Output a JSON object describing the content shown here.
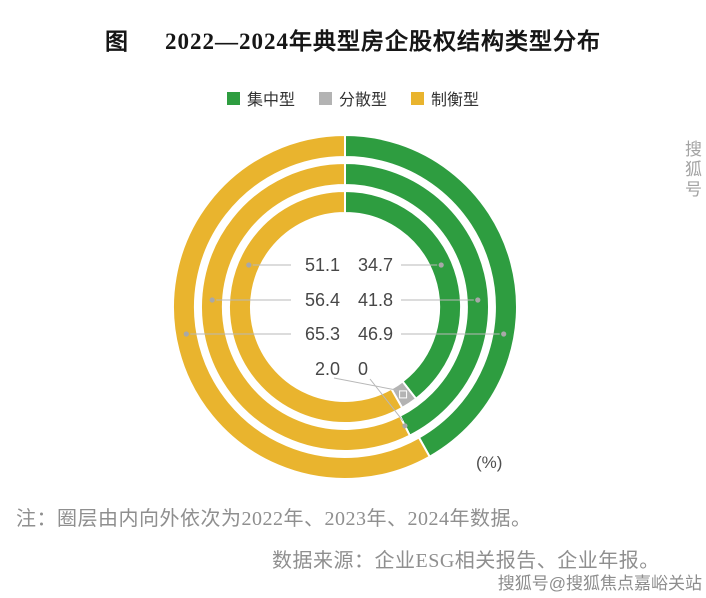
{
  "header": {
    "prefix": "图",
    "title": "2022—2024年典型房企股权结构类型分布"
  },
  "chart_data": {
    "type": "pie",
    "variant": "concentric-donut-3-rings",
    "unit_label": "(%)",
    "legend": [
      {
        "label": "集中型",
        "color": "#2e9d40"
      },
      {
        "label": "分散型",
        "color": "#b3b3b3"
      },
      {
        "label": "制衡型",
        "color": "#e9b42e"
      }
    ],
    "series_order": [
      "集中型",
      "分散型",
      "制衡型"
    ],
    "rings": [
      {
        "year": "2022",
        "position": "inner",
        "集中型": "34.7",
        "分散型": "2.0",
        "制衡型": "51.1"
      },
      {
        "year": "2023",
        "position": "middle",
        "集中型": "41.8",
        "分散型": "0",
        "制衡型": "56.4"
      },
      {
        "year": "2024",
        "position": "outer",
        "集中型": "46.9",
        "制衡型": "65.3"
      }
    ]
  },
  "footer": {
    "note": "注：圈层由内向外依次为2022年、2023年、2024年数据。",
    "source": "数据来源：企业ESG相关报告、企业年报。"
  },
  "watermark": {
    "side": "搜狐号",
    "bottom": "搜狐号@搜狐焦点嘉峪关站"
  }
}
